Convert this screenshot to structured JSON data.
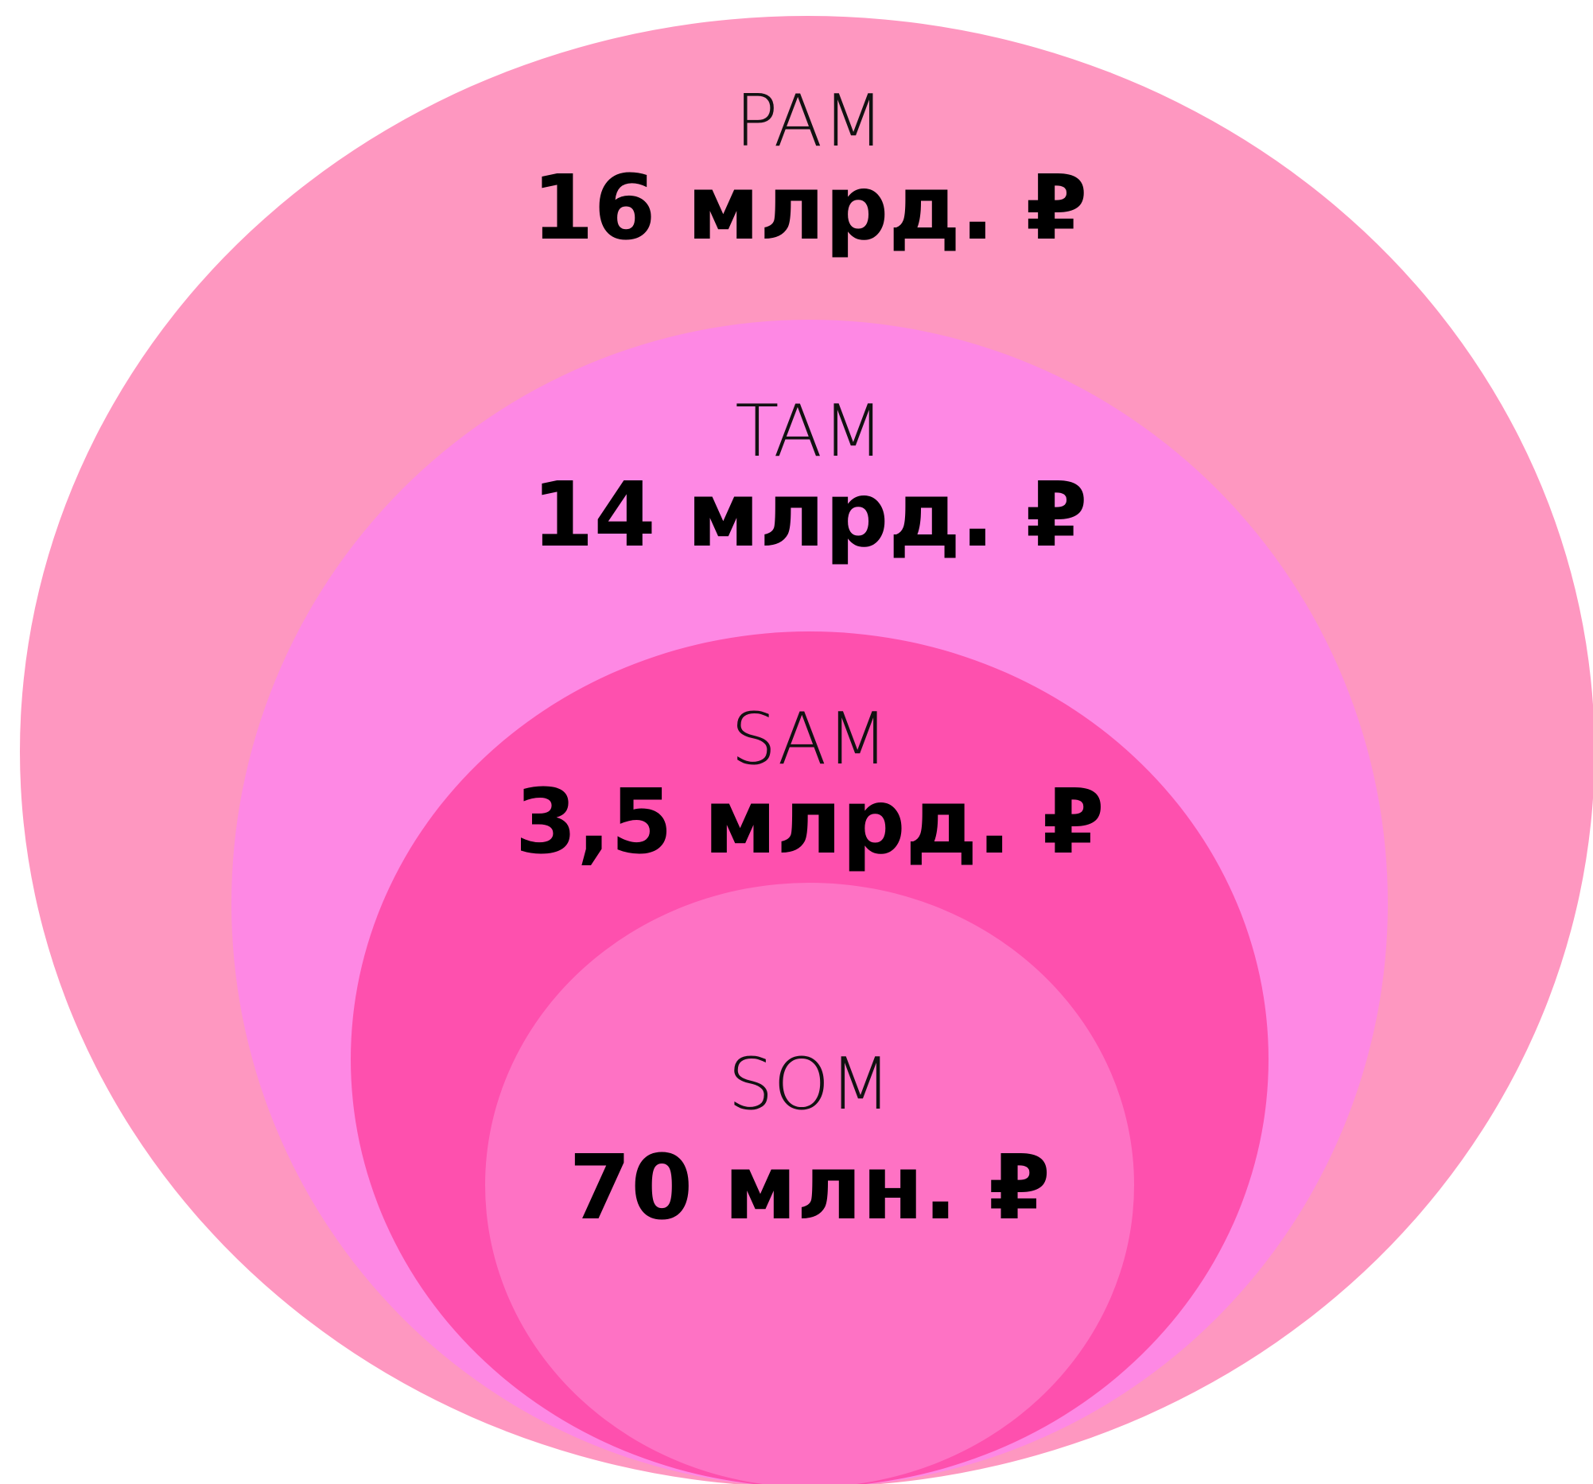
{
  "circles": [
    {
      "label": "PAM",
      "value": "16 млрд. ₽"
    },
    {
      "label": "TAM",
      "value": "14 млрд. ₽"
    },
    {
      "label": "SAM",
      "value": "3,5 млрд. ₽"
    },
    {
      "label": "SOM",
      "value": "70 млн. ₽"
    }
  ]
}
